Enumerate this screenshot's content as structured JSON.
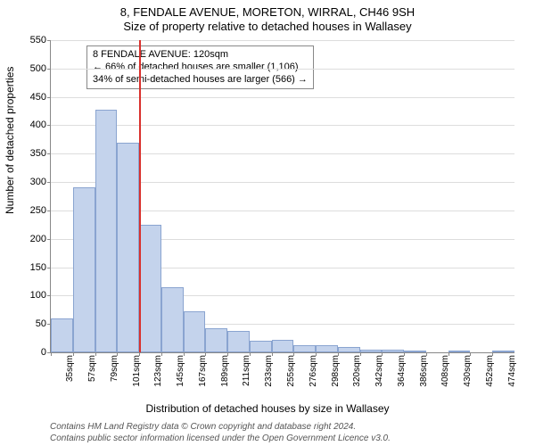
{
  "titles": {
    "line1": "8, FENDALE AVENUE, MORETON, WIRRAL, CH46 9SH",
    "line2": "Size of property relative to detached houses in Wallasey"
  },
  "axes": {
    "ylabel": "Number of detached properties",
    "xlabel": "Distribution of detached houses by size in Wallasey"
  },
  "disclaimer": {
    "l1": "Contains HM Land Registry data © Crown copyright and database right 2024.",
    "l2": "Contains public sector information licensed under the Open Government Licence v3.0."
  },
  "chart": {
    "type": "histogram",
    "ylim": [
      0,
      550
    ],
    "ytick_step": 50,
    "bar_fill": "#c4d3ec",
    "bar_stroke": "#8aa4d0",
    "grid_color": "#dddddd",
    "axis_color": "#888888",
    "background": "#ffffff",
    "label_fontsize": 12,
    "tick_fontsize": 11,
    "xtick_fontsize": 10,
    "bins": [
      {
        "label": "35sqm",
        "value": 60
      },
      {
        "label": "57sqm",
        "value": 290
      },
      {
        "label": "79sqm",
        "value": 428
      },
      {
        "label": "101sqm",
        "value": 370
      },
      {
        "label": "123sqm",
        "value": 225
      },
      {
        "label": "145sqm",
        "value": 115
      },
      {
        "label": "167sqm",
        "value": 73
      },
      {
        "label": "189sqm",
        "value": 42
      },
      {
        "label": "211sqm",
        "value": 38
      },
      {
        "label": "233sqm",
        "value": 20
      },
      {
        "label": "255sqm",
        "value": 22
      },
      {
        "label": "276sqm",
        "value": 12
      },
      {
        "label": "298sqm",
        "value": 12
      },
      {
        "label": "320sqm",
        "value": 10
      },
      {
        "label": "342sqm",
        "value": 5
      },
      {
        "label": "364sqm",
        "value": 5
      },
      {
        "label": "386sqm",
        "value": 3
      },
      {
        "label": "408sqm",
        "value": 0
      },
      {
        "label": "430sqm",
        "value": 3
      },
      {
        "label": "452sqm",
        "value": 0
      },
      {
        "label": "474sqm",
        "value": 3
      }
    ],
    "reference": {
      "bin_index": 4,
      "color": "#d9302c"
    }
  },
  "annotation": {
    "l1": "8 FENDALE AVENUE: 120sqm",
    "l2": "← 66% of detached houses are smaller (1,106)",
    "l3": "34% of semi-detached houses are larger (566) →"
  }
}
